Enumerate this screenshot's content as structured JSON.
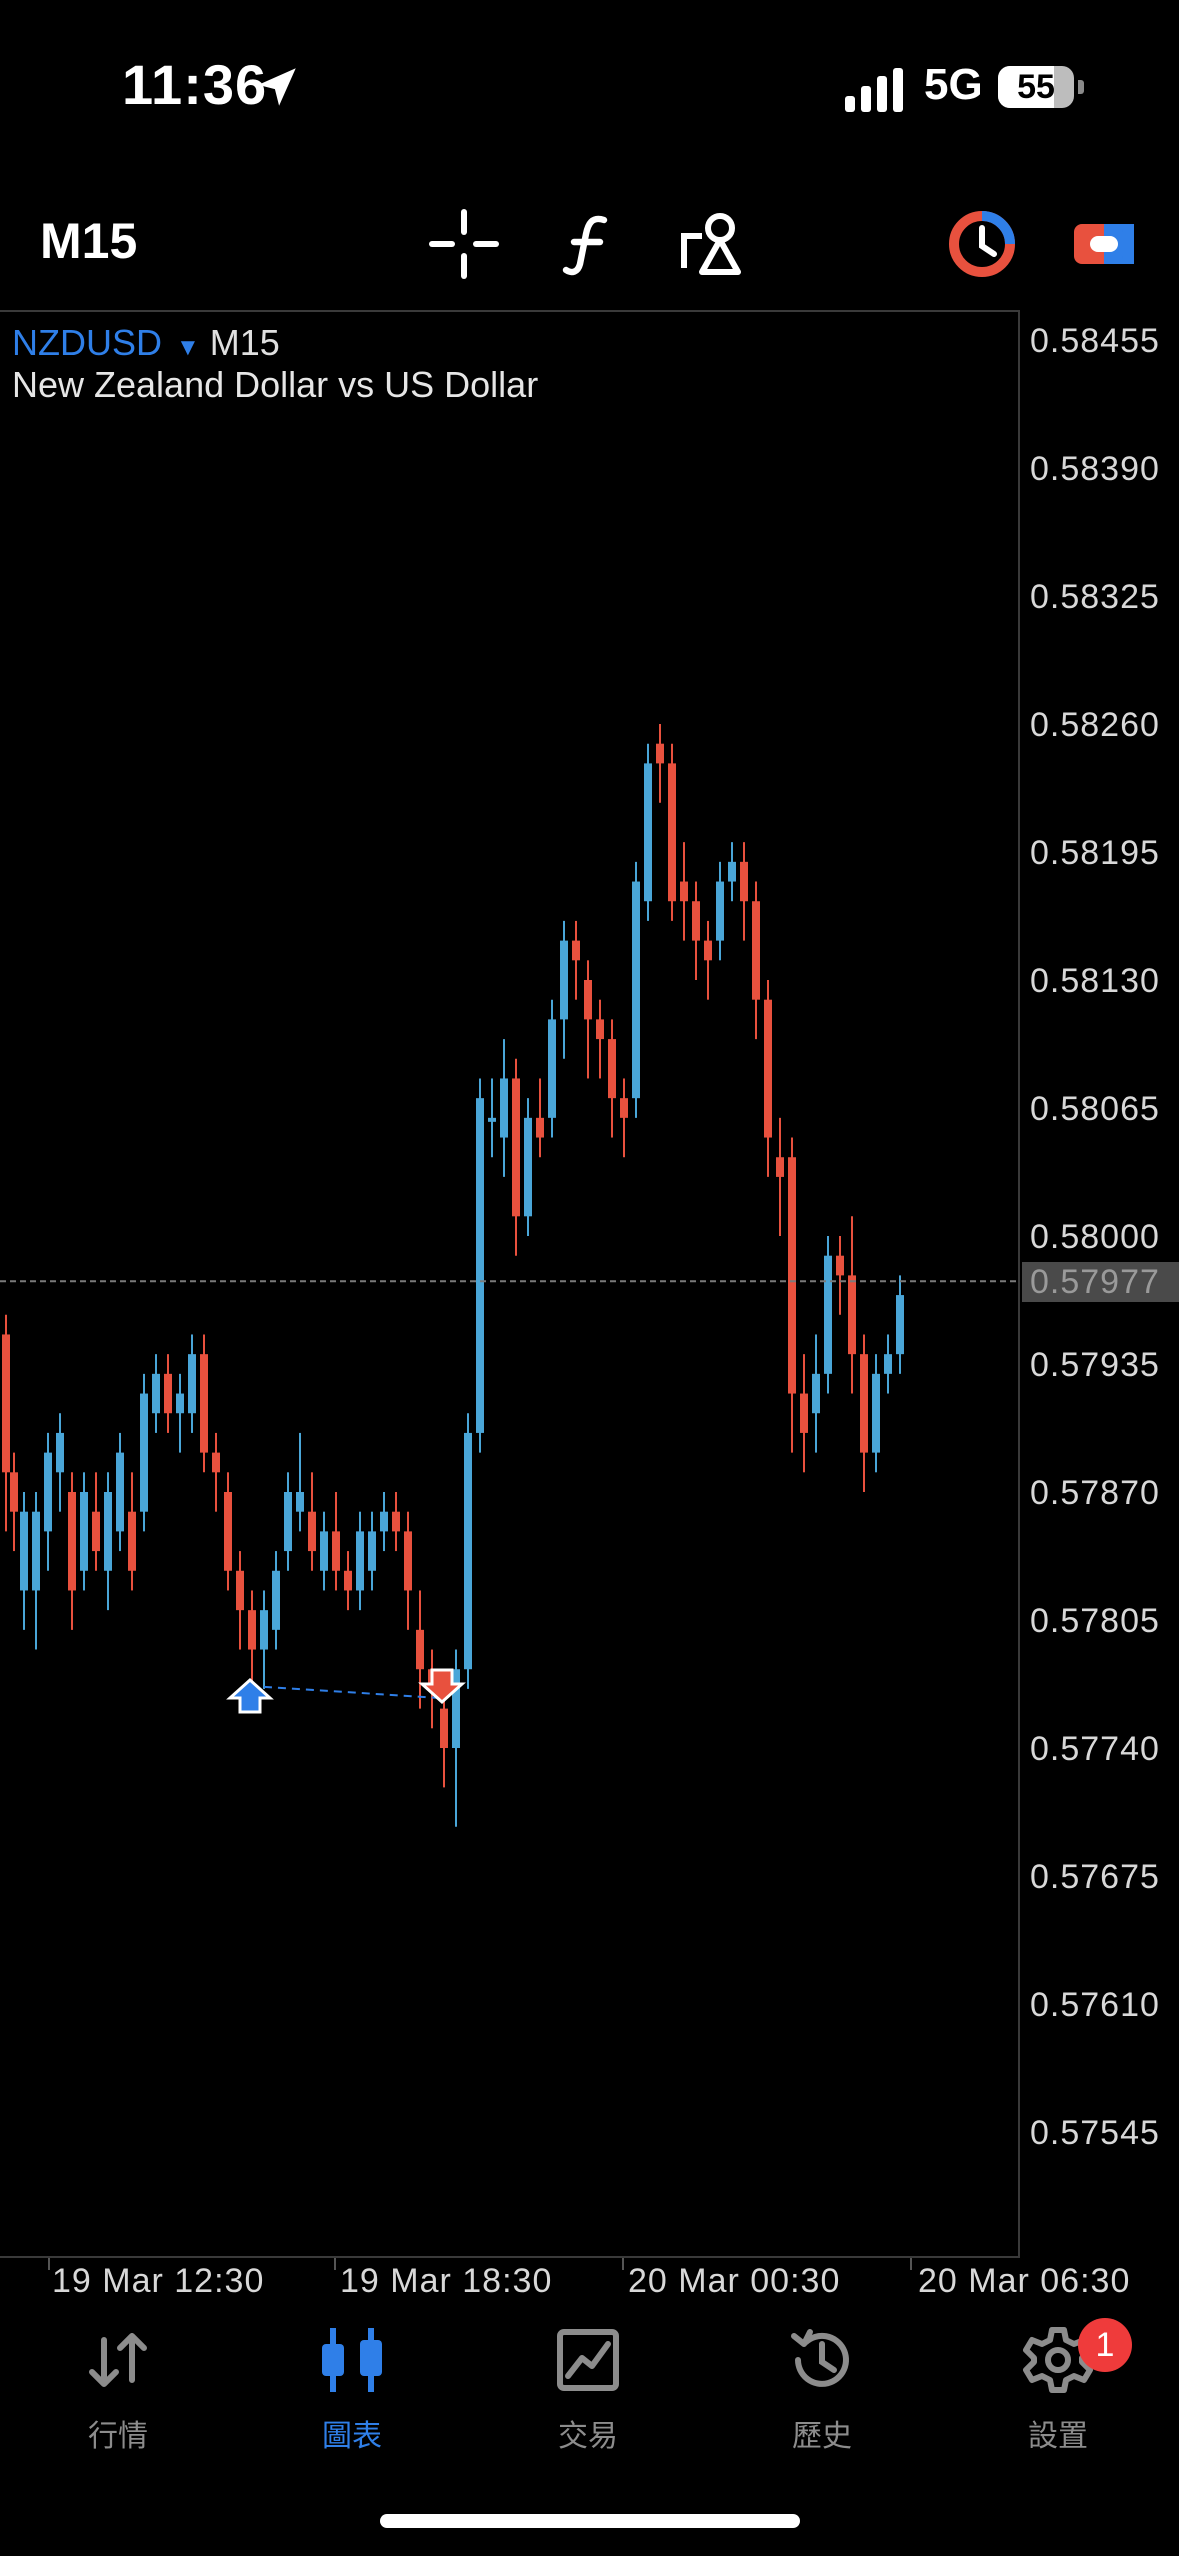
{
  "status_bar": {
    "time": "11:36",
    "network": "5G",
    "battery": "55"
  },
  "toolbar": {
    "timeframe": "M15",
    "icons": [
      "crosshair-icon",
      "indicators-icon",
      "objects-icon",
      "timeframe-clock-icon",
      "trade-toggle-icon"
    ]
  },
  "chart": {
    "symbol": "NZDUSD",
    "symbol_timeframe": "M15",
    "description": "New Zealand Dollar vs US Dollar",
    "current_price": "0.57977",
    "price_labels": [
      "0.58455",
      "0.58390",
      "0.58325",
      "0.58260",
      "0.58195",
      "0.58130",
      "0.58065",
      "0.58000",
      "0.57935",
      "0.57870",
      "0.57805",
      "0.57740",
      "0.57675",
      "0.57610",
      "0.57545"
    ],
    "time_labels": [
      "19 Mar 12:30",
      "19 Mar 18:30",
      "20 Mar 00:30",
      "20 Mar 06:30"
    ],
    "up_color": "#4aa6d8",
    "down_color": "#e8513e"
  },
  "nav": {
    "items": [
      {
        "label": "行情",
        "icon": "quotes-icon"
      },
      {
        "label": "圖表",
        "icon": "chart-icon"
      },
      {
        "label": "交易",
        "icon": "trade-icon"
      },
      {
        "label": "歷史",
        "icon": "history-icon"
      },
      {
        "label": "設置",
        "icon": "settings-icon"
      }
    ],
    "active": "圖表",
    "settings_badge": "1"
  }
}
